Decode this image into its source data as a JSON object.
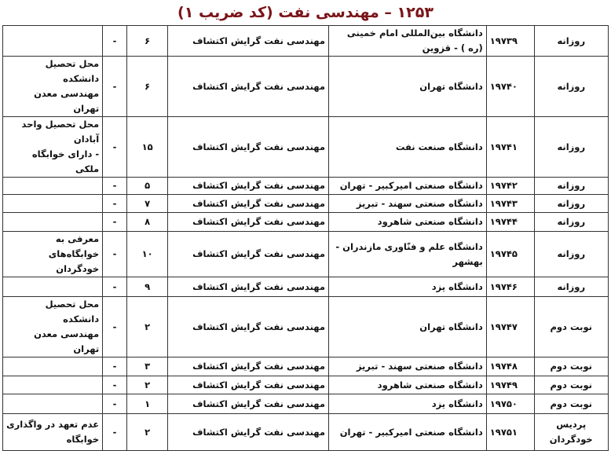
{
  "title": "۱۲۵۳ – مهندسی نفت (کد ضریب ۱)",
  "title_color": "#7a1418",
  "rows": [
    {
      "type": "روزانه",
      "code": "۱۹۷۳۹",
      "university": "دانشگاه بین‌المللی امام خمینی (ره ) - قزوین",
      "field": "مهندسی نفت گرایش اکتشاف",
      "capacity": "۶",
      "dash": "-",
      "note": ""
    },
    {
      "type": "روزانه",
      "code": "۱۹۷۴۰",
      "university": "دانشگاه تهران",
      "field": "مهندسی نفت گرایش اکتشاف",
      "capacity": "۶",
      "dash": "-",
      "note": "محل تحصیل دانشکده\nمهندسی معدن تهران"
    },
    {
      "type": "روزانه",
      "code": "۱۹۷۴۱",
      "university": "دانشگاه صنعت نفت",
      "field": "مهندسی نفت گرایش اکتشاف",
      "capacity": "۱۵",
      "dash": "-",
      "note": "محل تحصیل واحد آبادان\n- دارای خوابگاه ملکی"
    },
    {
      "type": "روزانه",
      "code": "۱۹۷۴۲",
      "university": "دانشگاه صنعتی امیرکبیر - تهران",
      "field": "مهندسی نفت گرایش اکتشاف",
      "capacity": "۵",
      "dash": "-",
      "note": ""
    },
    {
      "type": "روزانه",
      "code": "۱۹۷۴۳",
      "university": "دانشگاه صنعتی سهند - تبریز",
      "field": "مهندسی نفت گرایش اکتشاف",
      "capacity": "۷",
      "dash": "-",
      "note": ""
    },
    {
      "type": "روزانه",
      "code": "۱۹۷۴۴",
      "university": "دانشگاه صنعتی شاهرود",
      "field": "مهندسی نفت گرایش اکتشاف",
      "capacity": "۸",
      "dash": "-",
      "note": ""
    },
    {
      "type": "روزانه",
      "code": "۱۹۷۴۵",
      "university": "دانشگاه علم و فنّاوری مازندران - بهشهر",
      "field": "مهندسی نفت گرایش اکتشاف",
      "capacity": "۱۰",
      "dash": "-",
      "note": "معرفی به خوابگاه‌های\nخودگردان"
    },
    {
      "type": "روزانه",
      "code": "۱۹۷۴۶",
      "university": "دانشگاه یزد",
      "field": "مهندسی نفت گرایش اکتشاف",
      "capacity": "۹",
      "dash": "-",
      "note": ""
    },
    {
      "type": "نوبت دوم",
      "code": "۱۹۷۴۷",
      "university": "دانشگاه تهران",
      "field": "مهندسی نفت گرایش اکتشاف",
      "capacity": "۲",
      "dash": "-",
      "note": "محل تحصیل دانشکده\nمهندسی معدن تهران"
    },
    {
      "type": "نوبت دوم",
      "code": "۱۹۷۴۸",
      "university": "دانشگاه صنعتی سهند - تبریز",
      "field": "مهندسی نفت گرایش اکتشاف",
      "capacity": "۳",
      "dash": "-",
      "note": ""
    },
    {
      "type": "نوبت دوم",
      "code": "۱۹۷۴۹",
      "university": "دانشگاه صنعتی شاهرود",
      "field": "مهندسی نفت گرایش اکتشاف",
      "capacity": "۲",
      "dash": "-",
      "note": ""
    },
    {
      "type": "نوبت دوم",
      "code": "۱۹۷۵۰",
      "university": "دانشگاه یزد",
      "field": "مهندسی نفت گرایش اکتشاف",
      "capacity": "۱",
      "dash": "-",
      "note": ""
    },
    {
      "type": "پردیس خودگردان",
      "code": "۱۹۷۵۱",
      "university": "دانشگاه صنعتی امیرکبیر - تهران",
      "field": "مهندسی نفت گرایش اکتشاف",
      "capacity": "۲",
      "dash": "-",
      "note": "عدم تعهد در واگذاری\nخوابگاه"
    }
  ]
}
